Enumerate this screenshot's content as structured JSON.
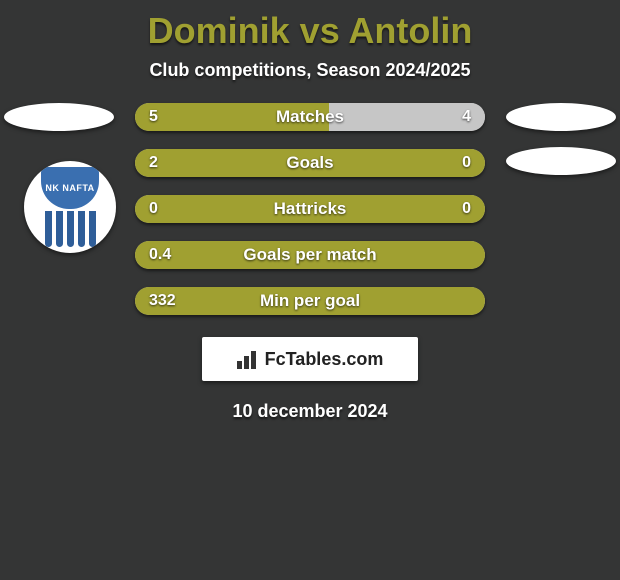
{
  "colors": {
    "background": "#343535",
    "title": "#a0a031",
    "bar_left": "#a0a031",
    "bar_right": "#c6c6c6",
    "logo_shield": "#3a6fb0",
    "logo_stripe": "#2f5e99"
  },
  "title": "Dominik vs Antolin",
  "subtitle": "Club competitions, Season 2024/2025",
  "date": "10 december 2024",
  "brand": "FcTables.com",
  "logo": {
    "text": "NK NAFTA"
  },
  "dimensions": {
    "row_width": 350
  },
  "rows": [
    {
      "label": "Matches",
      "left_val": "5",
      "right_val": "4",
      "left_num": 5,
      "right_num": 4
    },
    {
      "label": "Goals",
      "left_val": "2",
      "right_val": "0",
      "left_num": 2,
      "right_num": 0
    },
    {
      "label": "Hattricks",
      "left_val": "0",
      "right_val": "0",
      "left_num": 0,
      "right_num": 0
    },
    {
      "label": "Goals per match",
      "left_val": "0.4",
      "right_val": "",
      "left_num": 0.4,
      "right_num": 0
    },
    {
      "label": "Min per goal",
      "left_val": "332",
      "right_val": "",
      "left_num": 332,
      "right_num": 0
    }
  ]
}
